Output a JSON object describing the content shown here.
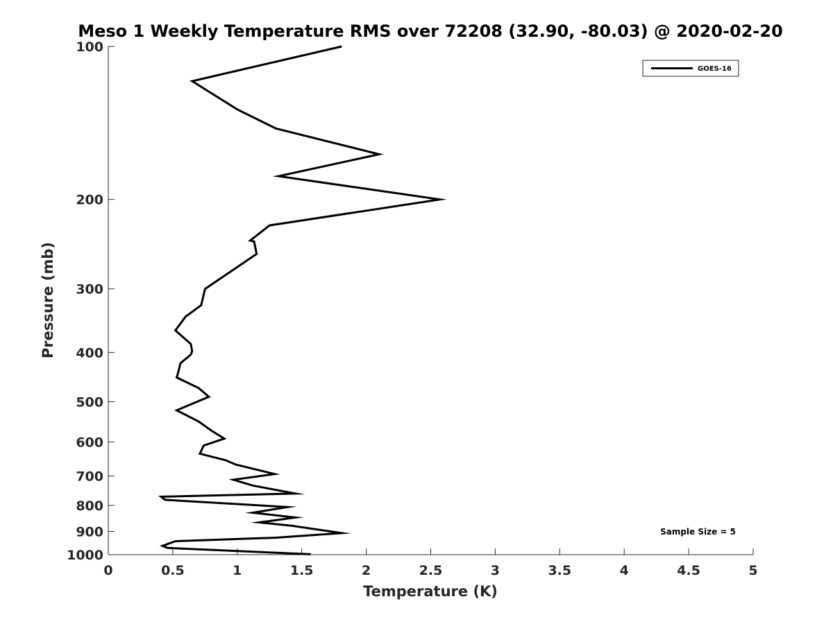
{
  "chart_data": {
    "type": "line",
    "title": "Meso 1 Weekly Temperature RMS over 72208 (32.90, -80.03) @ 2020-02-20",
    "xlabel": "Temperature (K)",
    "ylabel": "Pressure (mb)",
    "xlim": [
      0,
      5
    ],
    "ylim": [
      100,
      1000
    ],
    "y_scale": "log",
    "y_reversed": true,
    "grid": false,
    "legend_position": "top-right",
    "x_ticks": [
      0,
      0.5,
      1,
      1.5,
      2,
      2.5,
      3,
      3.5,
      4,
      4.5,
      5
    ],
    "x_tick_labels": [
      "0",
      "0.5",
      "1",
      "1.5",
      "2",
      "2.5",
      "3",
      "3.5",
      "4",
      "4.5",
      "5"
    ],
    "y_ticks": [
      100,
      200,
      300,
      400,
      500,
      600,
      700,
      800,
      900,
      1000
    ],
    "y_tick_labels": [
      "100",
      "200",
      "300",
      "400",
      "500",
      "600",
      "700",
      "800",
      "900",
      "1000"
    ],
    "series": [
      {
        "name": "GOES-16",
        "color": "#000000",
        "x": [
          1.81,
          0.65,
          1.0,
          1.3,
          2.1,
          1.32,
          2.57,
          1.25,
          1.1,
          1.13,
          1.15,
          0.97,
          0.75,
          0.72,
          0.6,
          0.52,
          0.64,
          0.65,
          0.64,
          0.56,
          0.54,
          0.53,
          0.7,
          0.78,
          0.53,
          0.7,
          0.8,
          0.9,
          0.74,
          0.71,
          0.91,
          0.99,
          1.29,
          0.97,
          1.12,
          1.45,
          0.41,
          0.44,
          1.39,
          1.12,
          1.45,
          1.17,
          1.42,
          1.81,
          1.3,
          0.52,
          0.42,
          0.46,
          1.57
        ],
        "y": [
          100,
          117,
          133,
          145,
          163,
          180,
          200,
          225,
          241,
          242,
          256,
          275,
          300,
          323,
          340,
          362,
          385,
          398,
          404,
          420,
          440,
          448,
          470,
          489,
          520,
          547,
          570,
          591,
          610,
          633,
          652,
          665,
          694,
          712,
          731,
          758,
          769,
          780,
          806,
          827,
          845,
          864,
          877,
          907,
          926,
          941,
          961,
          970,
          998
        ]
      }
    ],
    "legend": [
      "GOES-16"
    ],
    "annotation": "Sample Size = 5"
  }
}
